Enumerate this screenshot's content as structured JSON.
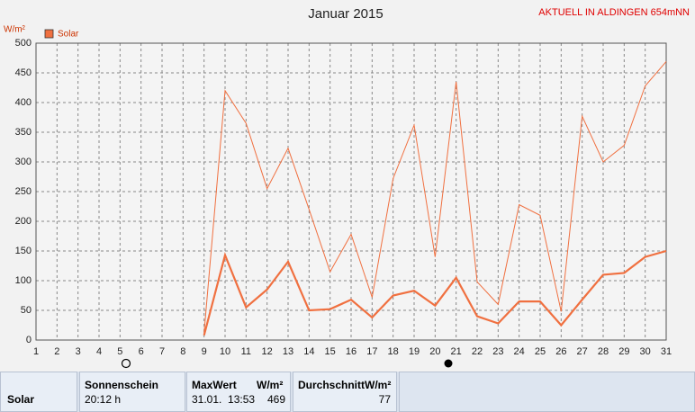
{
  "chart_data": {
    "type": "line",
    "title": "Januar 2015",
    "subtitle": "AKTUELL IN ALDINGEN 654mNN",
    "y_label": "W/m²",
    "x": [
      1,
      2,
      3,
      4,
      5,
      6,
      7,
      8,
      9,
      10,
      11,
      12,
      13,
      14,
      15,
      16,
      17,
      18,
      19,
      20,
      21,
      22,
      23,
      24,
      25,
      26,
      27,
      28,
      29,
      30,
      31
    ],
    "series": [
      {
        "name": "Solar",
        "color": "#f07040",
        "values": [
          null,
          null,
          null,
          null,
          null,
          null,
          null,
          null,
          12,
          420,
          365,
          255,
          323,
          220,
          115,
          178,
          72,
          272,
          362,
          140,
          435,
          98,
          60,
          228,
          210,
          48,
          377,
          300,
          328,
          428,
          469
        ]
      },
      {
        "color": "#f07040",
        "values": [
          null,
          null,
          null,
          null,
          null,
          null,
          null,
          null,
          8,
          143,
          55,
          85,
          132,
          50,
          52,
          68,
          38,
          75,
          83,
          58,
          105,
          40,
          28,
          65,
          65,
          25,
          68,
          110,
          113,
          140,
          150
        ]
      }
    ],
    "xlim": [
      1,
      31
    ],
    "xticks": [
      1,
      2,
      3,
      4,
      5,
      6,
      7,
      8,
      9,
      10,
      11,
      12,
      13,
      14,
      15,
      16,
      17,
      18,
      19,
      20,
      21,
      22,
      23,
      24,
      25,
      26,
      27,
      28,
      29,
      30,
      31
    ],
    "ylim": [
      0,
      500
    ],
    "yticks": [
      0,
      50,
      100,
      150,
      200,
      250,
      300,
      350,
      400,
      450,
      500
    ],
    "grid": true,
    "legend": "top-left"
  },
  "table": {
    "headers": [
      "Sonnenschein",
      "MaxWert",
      "W/m²",
      "DurchschnittW/m²"
    ],
    "rows": [
      [
        "Solar",
        "20:12 h",
        "31.01.  13:53",
        469,
        77
      ]
    ]
  }
}
